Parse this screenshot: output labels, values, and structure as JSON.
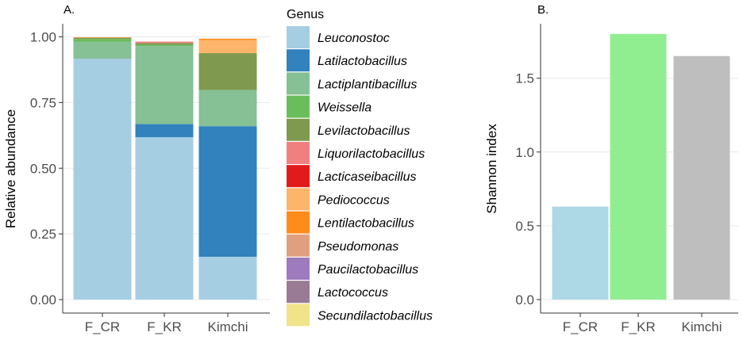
{
  "chart_data": [
    {
      "type": "bar",
      "stacked": true,
      "panel_label": "A.",
      "title": "",
      "xlabel": "",
      "ylabel": "Relative abundance",
      "ylim": [
        0,
        1.05
      ],
      "y_ticks": [
        0.0,
        0.25,
        0.5,
        0.75,
        1.0
      ],
      "y_tick_labels": [
        "0.00",
        "0.25",
        "0.50",
        "0.75",
        "1.00"
      ],
      "categories": [
        "F_CR",
        "F_KR",
        "Kimchi"
      ],
      "legend_title": "Genus",
      "legend_position": "right",
      "series": [
        {
          "name": "Leuconostoc",
          "color": "#a6cee3",
          "values": [
            0.917,
            0.618,
            0.163
          ]
        },
        {
          "name": "Latilactobacillus",
          "color": "#3182bd",
          "values": [
            0.0,
            0.05,
            0.497
          ]
        },
        {
          "name": "Lactiplantibacillus",
          "color": "#86c095",
          "values": [
            0.065,
            0.297,
            0.138
          ]
        },
        {
          "name": "Weissella",
          "color": "#6abd5b",
          "values": [
            0.01,
            0.005,
            0.0
          ]
        },
        {
          "name": "Levilactobacillus",
          "color": "#7f9a4f",
          "values": [
            0.005,
            0.006,
            0.14
          ]
        },
        {
          "name": "Liquorilactobacillus",
          "color": "#f08080",
          "values": [
            0.0,
            0.006,
            0.0
          ]
        },
        {
          "name": "Lacticaseibacillus",
          "color": "#e31a1c",
          "values": [
            0.0,
            0.0,
            0.0
          ]
        },
        {
          "name": "Pediococcus",
          "color": "#fdb46b",
          "values": [
            0.0,
            0.0,
            0.05
          ]
        },
        {
          "name": "Lentilactobacillus",
          "color": "#ff8c1a",
          "values": [
            0.001,
            0.0,
            0.005
          ]
        },
        {
          "name": "Pseudomonas",
          "color": "#e0a080",
          "values": [
            0.0,
            0.0,
            0.0
          ]
        },
        {
          "name": "Paucilactobacillus",
          "color": "#9e7bbf",
          "values": [
            0.0,
            0.0,
            0.0
          ]
        },
        {
          "name": "Lactococcus",
          "color": "#9a7b95",
          "values": [
            0.0,
            0.0,
            0.0
          ]
        },
        {
          "name": "Secundilactobacillus",
          "color": "#f0e38a",
          "values": [
            0.0,
            0.0,
            0.0
          ]
        }
      ]
    },
    {
      "type": "bar",
      "panel_label": "B.",
      "title": "",
      "xlabel": "",
      "ylabel": "Shannon index",
      "ylim": [
        0,
        1.86
      ],
      "y_ticks": [
        0.0,
        0.5,
        1.0,
        1.5
      ],
      "y_tick_labels": [
        "0.0",
        "0.5",
        "1.0",
        "1.5"
      ],
      "categories": [
        "F_CR",
        "F_KR",
        "Kimchi"
      ],
      "values": [
        0.63,
        1.8,
        1.65
      ],
      "colors": [
        "#add8e6",
        "#90ee90",
        "#bebebe"
      ]
    }
  ]
}
